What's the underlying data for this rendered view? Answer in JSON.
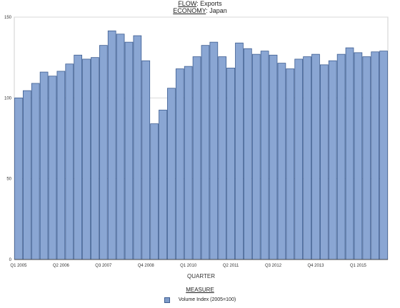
{
  "header": {
    "flow_key": "FLOW",
    "flow_value": "Exports",
    "economy_key": "ECONOMY",
    "economy_value": "Japan"
  },
  "legend": {
    "title": "MEASURE",
    "entry": "Volume Index (2005=100)"
  },
  "colors": {
    "bar_fill": "#8aa6d3",
    "bar_stroke": "#3d5d91",
    "grid": "#d9d9d9"
  },
  "chart_data": {
    "type": "bar",
    "xlabel": "QUARTER",
    "ylabel": "",
    "ylim": [
      0,
      150
    ],
    "yticks": [
      0,
      50,
      100,
      150
    ],
    "grid": true,
    "legend_placement": "bottom",
    "tick_labels": [
      {
        "index": 0,
        "label": "Q1 2005"
      },
      {
        "index": 5,
        "label": "Q2 2006"
      },
      {
        "index": 10,
        "label": "Q3 2007"
      },
      {
        "index": 15,
        "label": "Q4 2008"
      },
      {
        "index": 20,
        "label": "Q1 2010"
      },
      {
        "index": 25,
        "label": "Q2 2011"
      },
      {
        "index": 30,
        "label": "Q3 2012"
      },
      {
        "index": 35,
        "label": "Q4 2013"
      },
      {
        "index": 40,
        "label": "Q1 2015"
      }
    ],
    "categories": [
      "Q1 2005",
      "Q2 2005",
      "Q3 2005",
      "Q4 2005",
      "Q1 2006",
      "Q2 2006",
      "Q3 2006",
      "Q4 2006",
      "Q1 2007",
      "Q2 2007",
      "Q3 2007",
      "Q4 2007",
      "Q1 2008",
      "Q2 2008",
      "Q3 2008",
      "Q4 2008",
      "Q1 2009",
      "Q2 2009",
      "Q3 2009",
      "Q4 2009",
      "Q1 2010",
      "Q2 2010",
      "Q3 2010",
      "Q4 2010",
      "Q1 2011",
      "Q2 2011",
      "Q3 2011",
      "Q4 2011",
      "Q1 2012",
      "Q2 2012",
      "Q3 2012",
      "Q4 2012",
      "Q1 2013",
      "Q2 2013",
      "Q3 2013",
      "Q4 2013",
      "Q1 2014",
      "Q2 2014",
      "Q3 2014",
      "Q4 2014",
      "Q1 2015",
      "Q2 2015",
      "Q3 2015",
      "Q4 2015"
    ],
    "series": [
      {
        "name": "Volume Index (2005=100)",
        "values": [
          100,
          104.5,
          109,
          116,
          113.5,
          116.5,
          121,
          126.5,
          124,
          125,
          132.5,
          141.5,
          139.5,
          134.5,
          138.5,
          123,
          84,
          92.5,
          106,
          118,
          119.5,
          125.5,
          132.5,
          134.5,
          125.5,
          118.5,
          134,
          130.5,
          127,
          129,
          126.5,
          121.5,
          118,
          124,
          125.5,
          127,
          120.5,
          123,
          127,
          131,
          128,
          125.5,
          128.5,
          129
        ]
      }
    ]
  }
}
